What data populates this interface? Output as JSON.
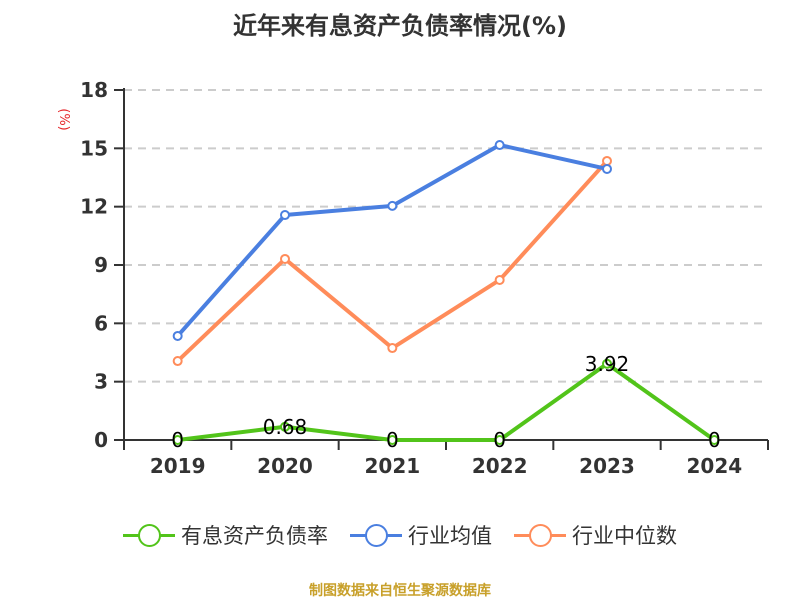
{
  "title": "近年来有息资产负债率情况(%)",
  "unit_label": "(%)",
  "source": "制图数据来自恒生聚源数据库",
  "colors": {
    "series_green": "#52c41a",
    "series_blue": "#4a7fe0",
    "series_orange": "#ff8c5a",
    "unit_red": "#e6262a",
    "source_gold": "#c8a02a"
  },
  "legend": [
    {
      "label": "有息资产负债率",
      "color": "#52c41a"
    },
    {
      "label": "行业均值",
      "color": "#4a7fe0"
    },
    {
      "label": "行业中位数",
      "color": "#ff8c5a"
    }
  ],
  "chart_data": {
    "type": "line",
    "title": "近年来有息资产负债率情况(%)",
    "xlabel": "",
    "ylabel": "(%)",
    "categories": [
      "2019",
      "2020",
      "2021",
      "2022",
      "2023",
      "2024"
    ],
    "ylim": [
      0,
      18
    ],
    "yticks": [
      0,
      3,
      6,
      9,
      12,
      15,
      18
    ],
    "grid": true,
    "legend_position": "bottom",
    "series": [
      {
        "name": "有息资产负债率",
        "values": [
          0,
          0.68,
          0,
          0,
          3.92,
          0
        ],
        "labels": [
          "0",
          "0.68",
          "0",
          "0",
          "3.92",
          "0"
        ]
      },
      {
        "name": "行业均值",
        "values": [
          5.35,
          11.57,
          12.04,
          15.17,
          13.94,
          null
        ]
      },
      {
        "name": "行业中位数",
        "values": [
          4.06,
          9.31,
          4.73,
          8.23,
          14.35,
          null
        ]
      }
    ]
  }
}
